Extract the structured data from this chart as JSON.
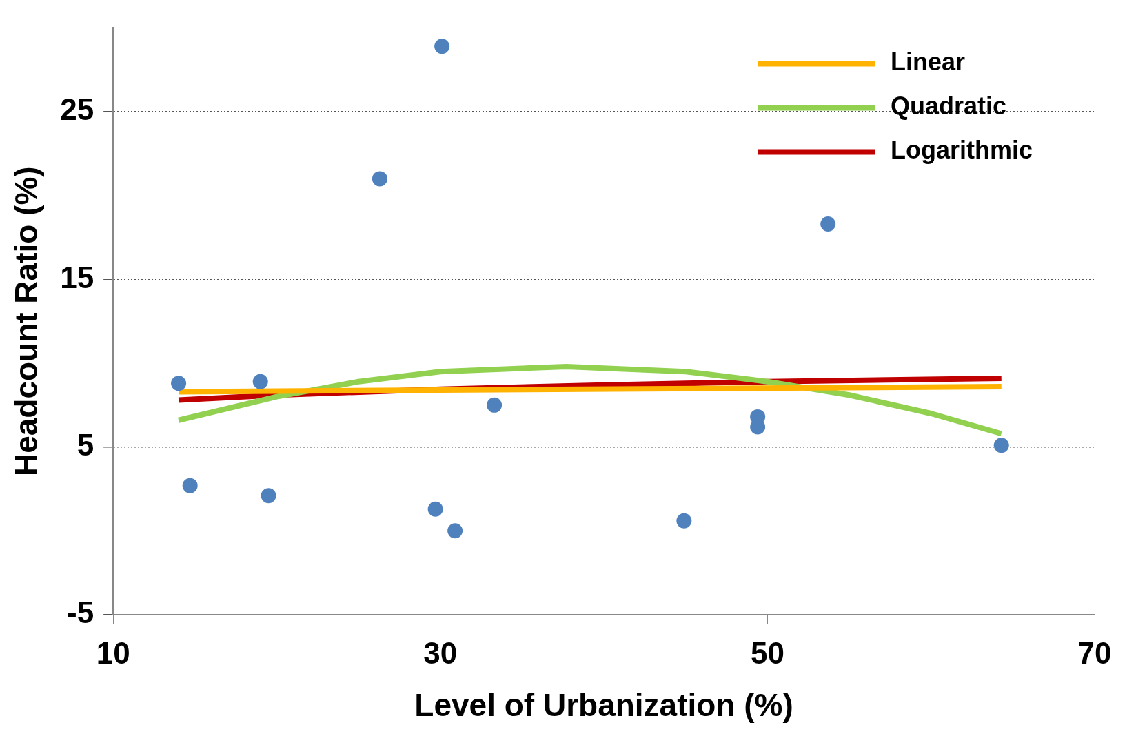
{
  "chart_data": {
    "type": "scatter",
    "xlabel": "Level of Urbanization (%)",
    "ylabel": "Headcount Ratio (%)",
    "xlim": [
      10,
      70
    ],
    "xticks": [
      10,
      30,
      50,
      70
    ],
    "ylim": [
      -5,
      30
    ],
    "yticks": [
      -5,
      5,
      15,
      25
    ],
    "grid": "y",
    "legend": "top right",
    "marker": "circle",
    "series": [
      {
        "type": "scatter",
        "color": "#4f81bd",
        "x": [
          14.0,
          14.7,
          19.0,
          19.5,
          26.3,
          30.1,
          29.7,
          30.9,
          33.3,
          44.9,
          49.4,
          49.4,
          53.7,
          64.3
        ],
        "values": [
          8.8,
          2.7,
          8.9,
          2.1,
          21.0,
          28.9,
          1.3,
          0.0,
          7.5,
          0.6,
          6.8,
          6.2,
          18.3,
          5.1
        ]
      },
      {
        "type": "line",
        "name": "Linear",
        "color": "#ffb300",
        "marker": "none",
        "x": [
          14.0,
          64.3
        ],
        "values": [
          8.3,
          8.6
        ]
      },
      {
        "type": "line",
        "name": "Quadratic",
        "color": "#92d050",
        "marker": "none",
        "x": [
          14,
          20,
          25,
          30,
          37.7,
          45,
          50,
          55,
          60,
          64.3
        ],
        "values": [
          6.6,
          8.0,
          8.9,
          9.5,
          9.8,
          9.5,
          8.9,
          8.1,
          7.0,
          5.8
        ]
      },
      {
        "type": "line",
        "name": "Logarithmic",
        "color": "#c00000",
        "marker": "none",
        "x": [
          14,
          20,
          30,
          40,
          50,
          64.3
        ],
        "values": [
          7.8,
          8.1,
          8.45,
          8.7,
          8.9,
          9.1
        ]
      }
    ]
  }
}
